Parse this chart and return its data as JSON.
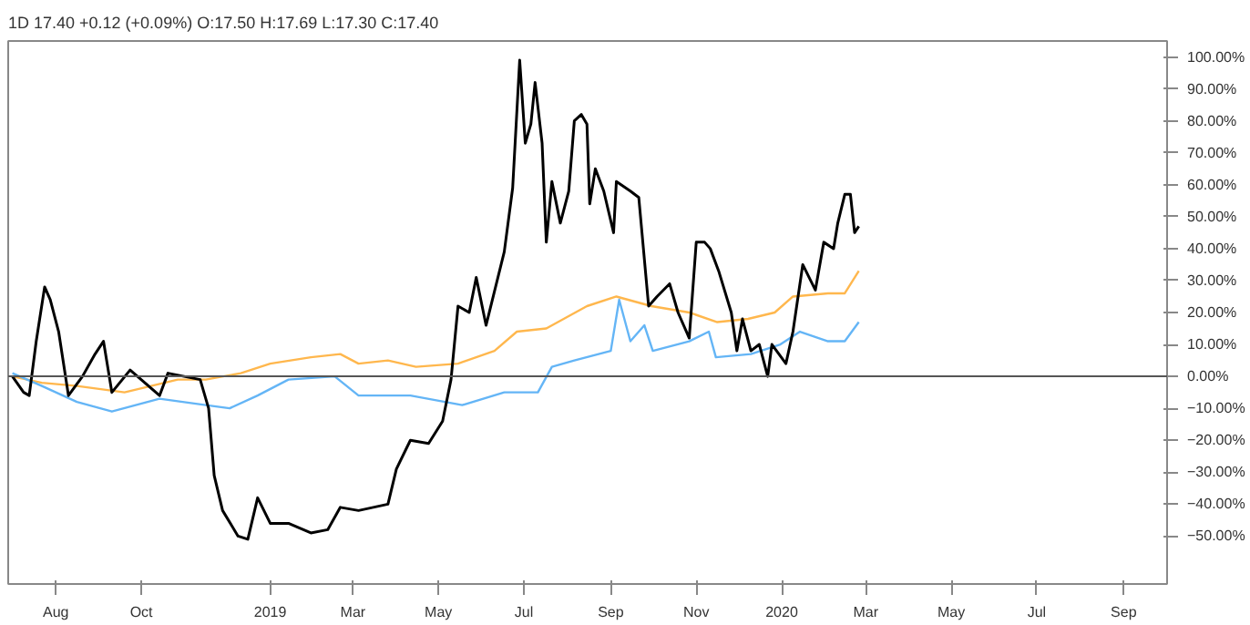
{
  "chart_data": {
    "type": "line",
    "annotations": [
      "1D 17.40 +0.12 (+0.09%) O:17.50 H:17.69 L:17.30 C:17.40"
    ],
    "xlim": [
      "2018-06-28",
      "2020-10-02"
    ],
    "xticks": [
      {
        "value": "2018-08-01",
        "label": "Aug"
      },
      {
        "value": "2018-10-01",
        "label": "Oct"
      },
      {
        "value": "2019-01-01",
        "label": "2019"
      },
      {
        "value": "2019-03-01",
        "label": "Mar"
      },
      {
        "value": "2019-05-01",
        "label": "May"
      },
      {
        "value": "2019-07-01",
        "label": "Jul"
      },
      {
        "value": "2019-09-01",
        "label": "Sep"
      },
      {
        "value": "2019-11-01",
        "label": "Nov"
      },
      {
        "value": "2020-01-01",
        "label": "2020"
      },
      {
        "value": "2020-03-01",
        "label": "Mar"
      },
      {
        "value": "2020-05-01",
        "label": "May"
      },
      {
        "value": "2020-07-01",
        "label": "Jul"
      },
      {
        "value": "2020-09-01",
        "label": "Sep"
      }
    ],
    "ylim": [
      -65,
      105
    ],
    "yticks": [
      {
        "value": -50,
        "label": "−50.00%"
      },
      {
        "value": -40,
        "label": "−40.00%"
      },
      {
        "value": -30,
        "label": "−30.00%"
      },
      {
        "value": -20,
        "label": "−20.00%"
      },
      {
        "value": -10,
        "label": "−10.00%"
      },
      {
        "value": 0,
        "label": "0.00%"
      },
      {
        "value": 10,
        "label": "10.00%"
      },
      {
        "value": 20,
        "label": "20.00%"
      },
      {
        "value": 30,
        "label": "30.00%"
      },
      {
        "value": 40,
        "label": "40.00%"
      },
      {
        "value": 50,
        "label": "50.00%"
      },
      {
        "value": 60,
        "label": "60.00%"
      },
      {
        "value": 70,
        "label": "70.00%"
      },
      {
        "value": 80,
        "label": "80.00%"
      },
      {
        "value": 90,
        "label": "90.00%"
      },
      {
        "value": 100,
        "label": "100.00%"
      }
    ],
    "grid": false,
    "ref_lines": [
      {
        "axis": "y",
        "value": 0,
        "color": "#555555"
      }
    ],
    "series": [
      {
        "color": "#ffb74d",
        "x": [
          "2018-07-01",
          "2018-07-22",
          "2018-08-16",
          "2018-09-19",
          "2018-10-27",
          "2018-11-16",
          "2018-12-11",
          "2019-01-01",
          "2019-01-30",
          "2019-02-20",
          "2019-03-05",
          "2019-03-26",
          "2019-04-15",
          "2019-05-15",
          "2019-06-10",
          "2019-06-26",
          "2019-07-17",
          "2019-08-15",
          "2019-09-05",
          "2019-09-30",
          "2019-10-27",
          "2019-11-16",
          "2019-12-08",
          "2019-12-27",
          "2020-01-09",
          "2020-02-03",
          "2020-02-15",
          "2020-02-25"
        ],
        "values": [
          0,
          -2,
          -3,
          -5,
          -1,
          -1,
          1,
          4,
          6,
          7,
          4,
          5,
          3,
          4,
          8,
          14,
          15,
          22,
          25,
          22,
          20,
          17,
          18,
          20,
          25,
          26,
          26,
          33
        ]
      },
      {
        "color": "#64b5f6",
        "x": [
          "2018-07-01",
          "2018-07-22",
          "2018-08-16",
          "2018-09-10",
          "2018-10-14",
          "2018-11-16",
          "2018-12-03",
          "2018-12-23",
          "2019-01-14",
          "2019-02-16",
          "2019-03-05",
          "2019-04-11",
          "2019-05-18",
          "2019-06-17",
          "2019-07-11",
          "2019-07-21",
          "2019-08-06",
          "2019-09-01",
          "2019-09-07",
          "2019-09-15",
          "2019-09-25",
          "2019-10-01",
          "2019-10-27",
          "2019-11-10",
          "2019-11-15",
          "2019-12-10",
          "2019-12-31",
          "2020-01-14",
          "2020-02-03",
          "2020-02-15",
          "2020-02-25"
        ],
        "values": [
          1,
          -3,
          -8,
          -11,
          -7,
          -9,
          -10,
          -6,
          -1,
          0,
          -6,
          -6,
          -9,
          -5,
          -5,
          3,
          5,
          8,
          24,
          11,
          16,
          8,
          11,
          14,
          6,
          7,
          10,
          14,
          11,
          11,
          17
        ]
      },
      {
        "color": "#000000",
        "x": [
          "2018-07-01",
          "2018-07-09",
          "2018-07-13",
          "2018-07-18",
          "2018-07-24",
          "2018-07-28",
          "2018-08-03",
          "2018-08-10",
          "2018-08-20",
          "2018-08-29",
          "2018-09-04",
          "2018-09-10",
          "2018-09-23",
          "2018-10-14",
          "2018-10-20",
          "2018-11-12",
          "2018-11-18",
          "2018-11-22",
          "2018-11-28",
          "2018-12-09",
          "2018-12-16",
          "2018-12-23",
          "2019-01-01",
          "2019-01-14",
          "2019-01-30",
          "2019-02-11",
          "2019-02-20",
          "2019-03-05",
          "2019-03-26",
          "2019-04-01",
          "2019-04-11",
          "2019-04-24",
          "2019-05-04",
          "2019-05-10",
          "2019-05-15",
          "2019-05-23",
          "2019-05-28",
          "2019-06-04",
          "2019-06-17",
          "2019-06-23",
          "2019-06-28",
          "2019-07-02",
          "2019-07-06",
          "2019-07-09",
          "2019-07-14",
          "2019-07-17",
          "2019-07-21",
          "2019-07-27",
          "2019-08-02",
          "2019-08-06",
          "2019-08-11",
          "2019-08-15",
          "2019-08-17",
          "2019-08-21",
          "2019-08-27",
          "2019-09-03",
          "2019-09-05",
          "2019-09-15",
          "2019-09-21",
          "2019-09-28",
          "2019-10-04",
          "2019-10-13",
          "2019-10-19",
          "2019-10-27",
          "2019-11-01",
          "2019-11-07",
          "2019-11-11",
          "2019-11-17",
          "2019-11-26",
          "2019-11-30",
          "2019-12-04",
          "2019-12-10",
          "2019-12-16",
          "2019-12-22",
          "2019-12-25",
          "2020-01-04",
          "2020-01-09",
          "2020-01-16",
          "2020-01-25",
          "2020-01-31",
          "2020-02-07",
          "2020-02-10",
          "2020-02-15",
          "2020-02-19",
          "2020-02-22",
          "2020-02-25"
        ],
        "values": [
          0,
          -5,
          -6,
          11,
          28,
          24,
          14,
          -6,
          0,
          7,
          11,
          -5,
          2,
          -6,
          1,
          -1,
          -10,
          -31,
          -42,
          -50,
          -51,
          -38,
          -46,
          -46,
          -49,
          -48,
          -41,
          -42,
          -40,
          -29,
          -20,
          -21,
          -14,
          -1,
          22,
          20,
          31,
          16,
          39,
          59,
          99,
          73,
          79,
          92,
          73,
          42,
          61,
          48,
          58,
          80,
          82,
          79,
          54,
          65,
          58,
          45,
          61,
          58,
          56,
          22,
          25,
          29,
          20,
          12,
          42,
          42,
          40,
          33,
          20,
          8,
          18,
          8,
          10,
          0,
          10,
          4,
          14,
          35,
          27,
          42,
          40,
          48,
          57,
          57,
          45,
          47
        ]
      }
    ]
  }
}
